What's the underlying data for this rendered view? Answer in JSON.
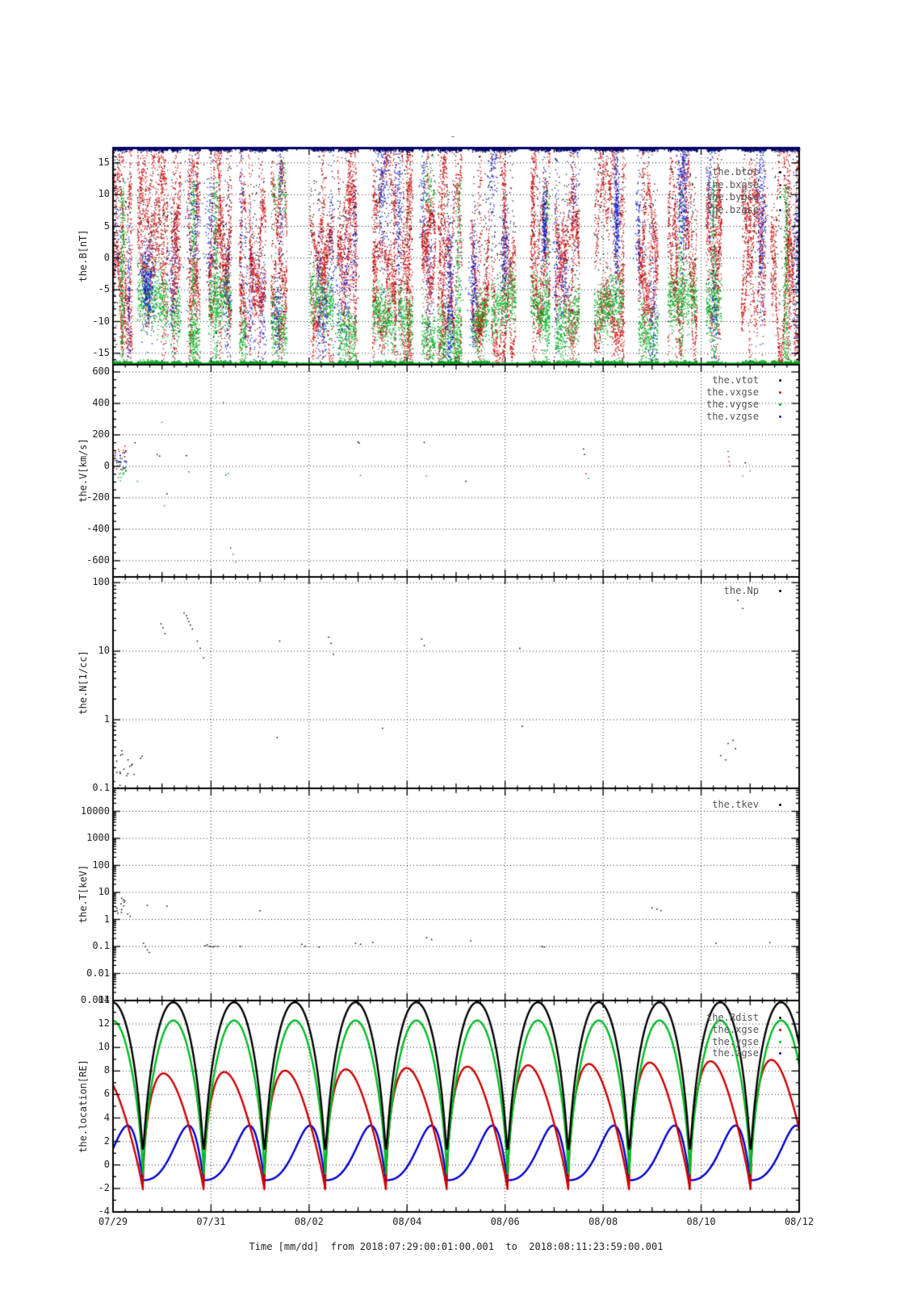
{
  "figure": {
    "title": "-",
    "xlabel": "Time [mm/dd]  from 2018:07:29:00:01:00.001  to  2018:08:11:23:59:00.001",
    "time_span_days": 14,
    "xticks": [
      {
        "day": 0,
        "label": "07/29"
      },
      {
        "day": 2,
        "label": "07/31"
      },
      {
        "day": 4,
        "label": "08/02"
      },
      {
        "day": 6,
        "label": "08/04"
      },
      {
        "day": 8,
        "label": "08/06"
      },
      {
        "day": 10,
        "label": "08/08"
      },
      {
        "day": 12,
        "label": "08/10"
      },
      {
        "day": 14,
        "label": "08/12"
      }
    ],
    "grid_days": [
      2,
      4,
      6,
      8,
      10,
      12
    ],
    "frame_color": "#000000",
    "grid_color": "#000000"
  },
  "chart_data": [
    {
      "type": "scatter",
      "name": "the.B",
      "ylabel": "the.B[nT]",
      "yscale": "linear",
      "ylim": [
        -16.8,
        17.4
      ],
      "minor_step": 1,
      "yticks": [
        {
          "v": 15,
          "label": "15"
        },
        {
          "v": 10,
          "label": "10"
        },
        {
          "v": 5,
          "label": "5"
        },
        {
          "v": 0,
          "label": "0"
        },
        {
          "v": -5,
          "label": "-5"
        },
        {
          "v": -10,
          "label": "-10"
        },
        {
          "v": -15,
          "label": "-15"
        }
      ],
      "series": [
        {
          "label": "the.btot",
          "color": "#000000"
        },
        {
          "label": "the.bxgse",
          "color": "#cc1111"
        },
        {
          "label": "the.bygse",
          "color": "#00b122"
        },
        {
          "label": "the.bzgse",
          "color": "#1122cc"
        }
      ],
      "clip_top_color": "#000066",
      "clip_bottom_color": "#00a01e",
      "bursts": [
        [
          0.0,
          0.38
        ],
        [
          0.5,
          1.12
        ],
        [
          1.18,
          1.38
        ],
        [
          1.55,
          1.78
        ],
        [
          1.95,
          2.42
        ],
        [
          2.58,
          2.72
        ],
        [
          2.78,
          3.12
        ],
        [
          3.22,
          3.55
        ],
        [
          4.02,
          4.5
        ],
        [
          4.58,
          4.97
        ],
        [
          5.3,
          5.78
        ],
        [
          5.82,
          6.12
        ],
        [
          6.3,
          6.58
        ],
        [
          6.62,
          7.12
        ],
        [
          7.32,
          7.68
        ],
        [
          7.72,
          8.22
        ],
        [
          8.52,
          8.92
        ],
        [
          9.02,
          9.52
        ],
        [
          9.82,
          10.42
        ],
        [
          10.72,
          11.12
        ],
        [
          11.32,
          11.92
        ],
        [
          12.1,
          12.42
        ],
        [
          12.82,
          13.32
        ],
        [
          13.42,
          14.0
        ]
      ],
      "gen": {
        "seed": 42,
        "red_density": 1500,
        "green_density": 700,
        "blue_density": 520,
        "black_density": 130,
        "top_density": 430,
        "bottom_density": 300
      }
    },
    {
      "type": "scatter",
      "name": "the.V",
      "ylabel": "the.V[km/s]",
      "yscale": "linear",
      "ylim": [
        -703,
        646
      ],
      "minor_step": 50,
      "yticks": [
        {
          "v": 600,
          "label": "600"
        },
        {
          "v": 400,
          "label": "400"
        },
        {
          "v": 200,
          "label": "200"
        },
        {
          "v": 0,
          "label": "0"
        },
        {
          "v": -200,
          "label": "-200"
        },
        {
          "v": -400,
          "label": "-400"
        },
        {
          "v": -600,
          "label": "-600"
        }
      ],
      "series": [
        {
          "label": "the.vtot",
          "color": "#000000"
        },
        {
          "label": "the.vxgse",
          "color": "#cc1111"
        },
        {
          "label": "the.vygse",
          "color": "#00b122"
        },
        {
          "label": "the.vzgse",
          "color": "#1122cc"
        }
      ],
      "clusters": [
        {
          "t0": 0.0,
          "t1": 0.28,
          "n": 42,
          "dist": "gauss",
          "mean": 45,
          "sd": 42,
          "min": -30,
          "max": 165,
          "colors": [
            0,
            1,
            3
          ]
        },
        {
          "t0": 0.0,
          "t1": 0.3,
          "n": 16,
          "dist": "gauss",
          "mean": -35,
          "sd": 35,
          "min": -110,
          "max": 30,
          "colors": [
            2
          ]
        }
      ],
      "points": [
        [
          0.45,
          150,
          0
        ],
        [
          0.5,
          -95,
          2
        ],
        [
          0.9,
          75,
          0
        ],
        [
          0.95,
          65,
          0
        ],
        [
          1.0,
          280,
          2
        ],
        [
          1.05,
          -250,
          2
        ],
        [
          1.1,
          -175,
          0
        ],
        [
          1.5,
          68,
          0
        ],
        [
          1.55,
          -35,
          1
        ],
        [
          2.25,
          405,
          3
        ],
        [
          2.3,
          -55,
          3
        ],
        [
          2.35,
          -45,
          2
        ],
        [
          2.4,
          -520,
          3
        ],
        [
          2.45,
          -560,
          2
        ],
        [
          2.5,
          -610,
          2
        ],
        [
          5.0,
          155,
          0
        ],
        [
          5.02,
          148,
          0
        ],
        [
          5.05,
          -58,
          2
        ],
        [
          6.35,
          152,
          0
        ],
        [
          6.4,
          -60,
          2
        ],
        [
          7.2,
          -95,
          0
        ],
        [
          9.6,
          110,
          0
        ],
        [
          9.62,
          75,
          0
        ],
        [
          9.65,
          -48,
          1
        ],
        [
          9.7,
          -78,
          2
        ],
        [
          12.55,
          95,
          1
        ],
        [
          12.56,
          60,
          1
        ],
        [
          12.57,
          30,
          1
        ],
        [
          12.58,
          5,
          1
        ],
        [
          12.85,
          -62,
          2
        ],
        [
          12.9,
          22,
          0
        ],
        [
          13.0,
          -30,
          2
        ]
      ]
    },
    {
      "type": "scatter",
      "name": "the.N",
      "ylabel": "the.N[1/cc]",
      "yscale": "log",
      "ylim": [
        0.1,
        121
      ],
      "yticks": [
        {
          "v": 100,
          "label": "100"
        },
        {
          "v": 10,
          "label": "10"
        },
        {
          "v": 1,
          "label": "1"
        },
        {
          "v": 0.1,
          "label": "0.1"
        }
      ],
      "series": [
        {
          "label": "the.Np",
          "color": "#000000"
        }
      ],
      "clusters": [
        {
          "t0": 0.0,
          "t1": 0.6,
          "n": 14,
          "dist": "loguni",
          "min": 0.14,
          "max": 0.42,
          "colors": [
            0
          ]
        },
        {
          "t0": 0.0,
          "t1": 0.15,
          "n": 6,
          "dist": "loguni",
          "min": 0.1,
          "max": 0.18,
          "colors": [
            0
          ]
        }
      ],
      "points": [
        [
          0.98,
          25,
          0
        ],
        [
          1.02,
          22,
          0
        ],
        [
          1.06,
          18,
          0
        ],
        [
          1.45,
          36,
          0
        ],
        [
          1.5,
          33,
          0
        ],
        [
          1.52,
          30,
          0
        ],
        [
          1.55,
          27,
          0
        ],
        [
          1.58,
          24,
          0
        ],
        [
          1.62,
          21,
          0
        ],
        [
          1.72,
          14,
          0
        ],
        [
          1.78,
          11,
          0
        ],
        [
          1.85,
          8,
          0
        ],
        [
          3.35,
          0.55,
          0
        ],
        [
          3.4,
          14,
          0
        ],
        [
          4.4,
          16,
          0
        ],
        [
          4.45,
          13,
          0
        ],
        [
          4.5,
          9,
          0
        ],
        [
          6.3,
          15,
          0
        ],
        [
          6.35,
          12,
          0
        ],
        [
          8.3,
          11,
          0
        ],
        [
          12.75,
          55,
          0
        ],
        [
          12.85,
          42,
          0
        ],
        [
          0.05,
          0.6,
          0
        ],
        [
          5.5,
          0.75,
          0
        ],
        [
          8.35,
          0.8,
          0
        ],
        [
          12.55,
          0.45,
          0
        ],
        [
          12.65,
          0.5,
          0
        ],
        [
          12.7,
          0.38,
          0
        ],
        [
          12.4,
          0.3,
          0
        ],
        [
          12.5,
          0.26,
          0
        ]
      ]
    },
    {
      "type": "scatter",
      "name": "the.T",
      "ylabel": "the.T[keV]",
      "yscale": "log",
      "ylim": [
        0.001,
        71000
      ],
      "yticks": [
        {
          "v": 10000,
          "label": "10000"
        },
        {
          "v": 1000,
          "label": "1000"
        },
        {
          "v": 100,
          "label": "100"
        },
        {
          "v": 10,
          "label": "10"
        },
        {
          "v": 1,
          "label": "1"
        },
        {
          "v": 0.1,
          "label": "0.1"
        },
        {
          "v": 0.01,
          "label": "0.01"
        },
        {
          "v": 0.001,
          "label": "0.001"
        }
      ],
      "series": [
        {
          "label": "the.tkev",
          "color": "#000000"
        }
      ],
      "clusters": [
        {
          "t0": 0.0,
          "t1": 0.32,
          "n": 14,
          "dist": "loguni",
          "min": 1.6,
          "max": 6.5,
          "colors": [
            0
          ]
        }
      ],
      "points": [
        [
          0.02,
          55000,
          0
        ],
        [
          0.3,
          1.6,
          0
        ],
        [
          0.35,
          1.3,
          0
        ],
        [
          0.7,
          3.3,
          0
        ],
        [
          1.1,
          3.1,
          0
        ],
        [
          0.62,
          0.13,
          0
        ],
        [
          0.66,
          0.1,
          0
        ],
        [
          0.7,
          0.075,
          0
        ],
        [
          0.74,
          0.06,
          0
        ],
        [
          1.88,
          0.105,
          0
        ],
        [
          1.92,
          0.115,
          0
        ],
        [
          1.96,
          0.1,
          0
        ],
        [
          2.0,
          0.1,
          0
        ],
        [
          2.04,
          0.095,
          0
        ],
        [
          2.08,
          0.102,
          0
        ],
        [
          2.14,
          0.1,
          0
        ],
        [
          2.6,
          0.1,
          0
        ],
        [
          3.0,
          2.1,
          0
        ],
        [
          3.85,
          0.12,
          0
        ],
        [
          3.92,
          0.1,
          0
        ],
        [
          4.2,
          0.095,
          0
        ],
        [
          4.95,
          0.13,
          0
        ],
        [
          5.05,
          0.12,
          0
        ],
        [
          5.3,
          0.14,
          0
        ],
        [
          6.4,
          0.21,
          0
        ],
        [
          6.5,
          0.18,
          0
        ],
        [
          7.3,
          0.16,
          0
        ],
        [
          8.75,
          0.1,
          0
        ],
        [
          8.8,
          0.095,
          0
        ],
        [
          11.0,
          2.7,
          0
        ],
        [
          11.1,
          2.4,
          0
        ],
        [
          11.18,
          2.1,
          0
        ],
        [
          12.3,
          0.13,
          0
        ],
        [
          13.4,
          0.14,
          0
        ]
      ]
    },
    {
      "type": "line",
      "name": "the.location",
      "ylabel": "the.location[RE]",
      "yscale": "linear",
      "ylim": [
        -4,
        14
      ],
      "minor_step": 1,
      "yticks": [
        {
          "v": 14,
          "label": "14"
        },
        {
          "v": 12,
          "label": "12"
        },
        {
          "v": 10,
          "label": "10"
        },
        {
          "v": 8,
          "label": "8"
        },
        {
          "v": 6,
          "label": "6"
        },
        {
          "v": 4,
          "label": "4"
        },
        {
          "v": 2,
          "label": "2"
        },
        {
          "v": 0,
          "label": "0"
        },
        {
          "v": -2,
          "label": "-2"
        },
        {
          "v": -4,
          "label": "-4"
        }
      ],
      "orbit": {
        "period_days": 1.24,
        "perigee_day": 0.61
      },
      "series": [
        {
          "label": "the.Rdist",
          "color": "#000000",
          "model": "kepler",
          "rmin": 1.35,
          "rmax": 13.85
        },
        {
          "label": "the.xgse",
          "color": "#cc0000",
          "model": "hump",
          "base": -2.15,
          "amp": 9.85,
          "amp_slope": 1.3,
          "p_pow": 0.64,
          "s_pow": 0.85
        },
        {
          "label": "the.ygse",
          "color": "#00bb22",
          "model": "hump",
          "base": -1.25,
          "amp": 13.55,
          "amp_slope": 0,
          "p_pow": 1.0,
          "s_pow": 0.62
        },
        {
          "label": "the.zgse",
          "color": "#0000cc",
          "model": "hump",
          "base": -1.3,
          "amp": 4.65,
          "amp_slope": 0,
          "p_pow": 2.4,
          "s_pow": 1.0
        }
      ],
      "draw_order": [
        3,
        1,
        2,
        0
      ]
    }
  ]
}
